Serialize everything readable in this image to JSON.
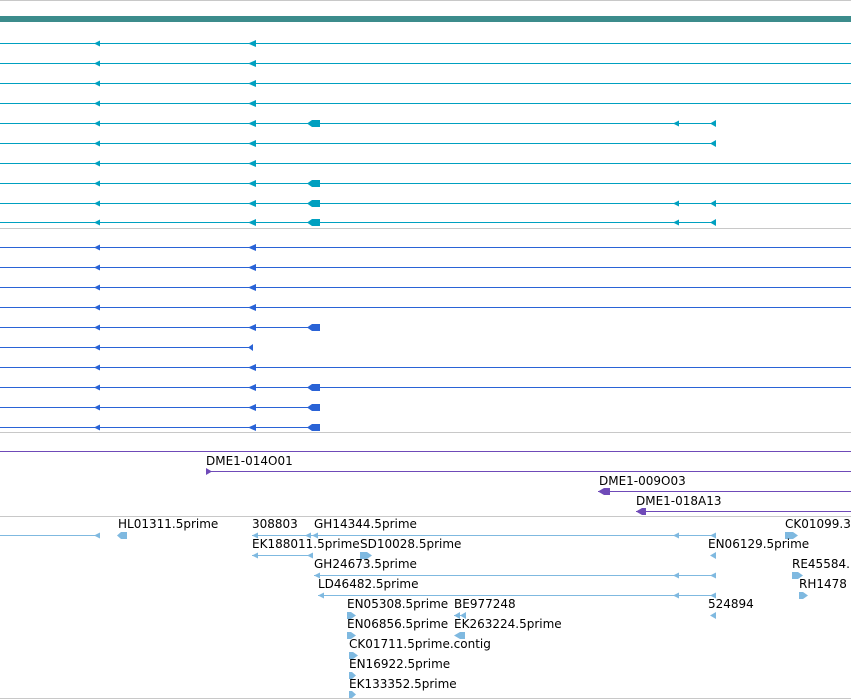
{
  "colors": {
    "gene_model_teal": "#00a0c0",
    "gene_model_blue": "#2a63d6",
    "clone_purple": "#6f4ab8",
    "est_light_blue": "#7fb9e0",
    "header_bar": "#3c8c8c",
    "separator": "#c8c8c8"
  },
  "tracks": {
    "clones": {
      "labels": [
        "DME1-014O01",
        "DME1-009O03",
        "DME1-018A13"
      ]
    },
    "est": {
      "labels": [
        "HL01311.5prime",
        "308803",
        "GH14344.5prime",
        "CK01099.3",
        "EK188011.5prime",
        "SD10028.5prime",
        "EN06129.5prime",
        "GH24673.5prime",
        "RE45584.",
        "LD46482.5prime",
        "RH1478",
        "EN05308.5prime",
        "BE977248",
        "524894",
        "EN06856.5prime",
        "EK263224.5prime",
        "CK01711.5prime.contig",
        "EN16922.5prime",
        "EK133352.5prime"
      ]
    }
  }
}
